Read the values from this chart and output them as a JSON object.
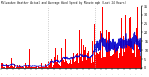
{
  "title": "Milwaukee Weather Actual and Average Wind Speed by Minute mph (Last 24 Hours)",
  "n_points": 1440,
  "ylim": [
    0,
    35
  ],
  "yticks": [
    0,
    5,
    10,
    15,
    20,
    25,
    30,
    35
  ],
  "background_color": "#ffffff",
  "bar_color": "#ff0000",
  "line_color": "#0000cc",
  "vline_color": "#bbbbbb",
  "vline_style": ":",
  "vline_positions": [
    480,
    960
  ],
  "seed": 42
}
